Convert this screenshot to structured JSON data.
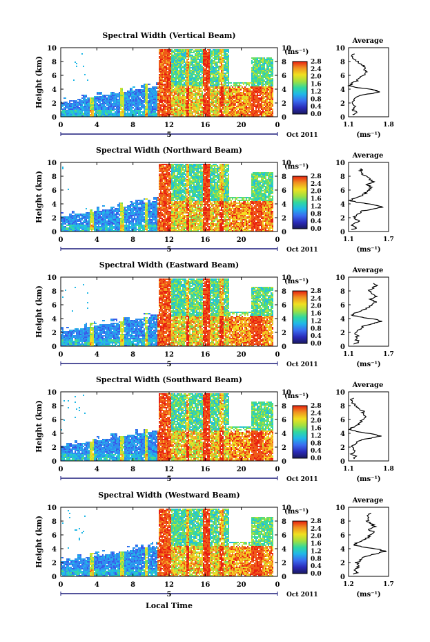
{
  "chart_data": [
    {
      "type": "heatmap",
      "title": "Spectral Width (Vertical Beam)",
      "ylabel": "Height (km)",
      "xlim": [
        0,
        24
      ],
      "ylim": [
        0,
        10
      ],
      "x_ticks": [
        "0",
        "4",
        "8",
        "12",
        "16",
        "20",
        "0"
      ],
      "y_ticks": [
        "0",
        "2",
        "4",
        "6",
        "8",
        "10"
      ],
      "day_label": "5",
      "date_label": "Oct 2011",
      "colorbar": {
        "unit_label": "(ms⁻¹)",
        "ticks": [
          "0.0",
          "0.4",
          "0.8",
          "1.2",
          "1.6",
          "2.0",
          "2.4",
          "2.8"
        ]
      },
      "average": {
        "title": "Average",
        "xlabel": "(ms⁻¹)",
        "xlim": [
          1.1,
          1.8
        ],
        "x_ticks": [
          "1.1",
          "1.8"
        ],
        "y_ticks": [
          "0",
          "2",
          "4",
          "6",
          "8",
          "10"
        ],
        "heights": [
          0.3,
          0.6,
          1.0,
          1.5,
          2.0,
          2.5,
          3.0,
          3.3,
          3.6,
          3.9,
          4.2,
          4.5,
          4.8,
          5.2,
          5.6,
          6.0,
          6.4,
          6.8,
          7.2,
          7.6,
          8.0,
          8.4,
          8.8,
          9.2
        ],
        "values": [
          1.18,
          1.25,
          1.16,
          1.22,
          1.14,
          1.2,
          1.26,
          1.45,
          1.65,
          1.55,
          1.28,
          1.12,
          1.15,
          1.24,
          1.28,
          1.35,
          1.42,
          1.38,
          1.4,
          1.3,
          1.25,
          1.2,
          1.15,
          1.22
        ]
      }
    },
    {
      "type": "heatmap",
      "title": "Spectral Width (Northward Beam)",
      "ylabel": "Height (km)",
      "xlim": [
        0,
        24
      ],
      "ylim": [
        0,
        10
      ],
      "x_ticks": [
        "0",
        "4",
        "8",
        "12",
        "16",
        "20",
        "0"
      ],
      "y_ticks": [
        "0",
        "2",
        "4",
        "6",
        "8",
        "10"
      ],
      "day_label": "5",
      "date_label": "Oct 2011",
      "colorbar": {
        "unit_label": "(ms⁻¹)",
        "ticks": [
          "0.0",
          "0.4",
          "0.8",
          "1.2",
          "1.6",
          "2.0",
          "2.4",
          "2.8"
        ]
      },
      "average": {
        "title": "Average",
        "xlabel": "(ms⁻¹)",
        "xlim": [
          1.1,
          1.7
        ],
        "x_ticks": [
          "1.1",
          "1.7"
        ],
        "y_ticks": [
          "0",
          "2",
          "4",
          "6",
          "8",
          "10"
        ],
        "heights": [
          0.3,
          0.6,
          1.0,
          1.5,
          2.0,
          2.5,
          3.0,
          3.3,
          3.6,
          3.9,
          4.2,
          4.5,
          4.8,
          5.2,
          5.6,
          6.0,
          6.4,
          6.8,
          7.2,
          7.6,
          8.0,
          8.4,
          8.8,
          9.2
        ],
        "values": [
          1.16,
          1.22,
          1.15,
          1.25,
          1.18,
          1.24,
          1.32,
          1.5,
          1.62,
          1.48,
          1.25,
          1.12,
          1.18,
          1.3,
          1.36,
          1.4,
          1.45,
          1.38,
          1.48,
          1.42,
          1.36,
          1.3,
          1.28,
          1.32
        ]
      }
    },
    {
      "type": "heatmap",
      "title": "Spectral Width (Eastward Beam)",
      "ylabel": "Height (km)",
      "xlim": [
        0,
        24
      ],
      "ylim": [
        0,
        10
      ],
      "x_ticks": [
        "0",
        "4",
        "8",
        "12",
        "16",
        "20",
        "0"
      ],
      "y_ticks": [
        "0",
        "2",
        "4",
        "6",
        "8",
        "10"
      ],
      "day_label": "5",
      "date_label": "Oct 2011",
      "colorbar": {
        "unit_label": "(ms⁻¹)",
        "ticks": [
          "0.0",
          "0.4",
          "0.8",
          "1.2",
          "1.6",
          "2.0",
          "2.4",
          "2.8"
        ]
      },
      "average": {
        "title": "Average",
        "xlabel": "(ms⁻¹)",
        "xlim": [
          1.1,
          1.7
        ],
        "x_ticks": [
          "1.1",
          "1.7"
        ],
        "y_ticks": [
          "0",
          "2",
          "4",
          "6",
          "8",
          "10"
        ],
        "heights": [
          0.3,
          0.6,
          1.0,
          1.5,
          2.0,
          2.5,
          3.0,
          3.3,
          3.6,
          3.9,
          4.2,
          4.5,
          4.8,
          5.2,
          5.6,
          6.0,
          6.4,
          6.8,
          7.2,
          7.6,
          8.0,
          8.4,
          8.8,
          9.2
        ],
        "values": [
          1.18,
          1.26,
          1.2,
          1.24,
          1.2,
          1.28,
          1.34,
          1.48,
          1.6,
          1.5,
          1.3,
          1.14,
          1.2,
          1.32,
          1.4,
          1.45,
          1.5,
          1.44,
          1.52,
          1.46,
          1.4,
          1.46,
          1.52,
          1.48
        ]
      }
    },
    {
      "type": "heatmap",
      "title": "Spectral Width (Southward Beam)",
      "ylabel": "Height (km)",
      "xlim": [
        0,
        24
      ],
      "ylim": [
        0,
        10
      ],
      "x_ticks": [
        "0",
        "4",
        "8",
        "12",
        "16",
        "20",
        "0"
      ],
      "y_ticks": [
        "0",
        "2",
        "4",
        "6",
        "8",
        "10"
      ],
      "day_label": "5",
      "date_label": "Oct 2011",
      "colorbar": {
        "unit_label": "(ms⁻¹)",
        "ticks": [
          "0.0",
          "0.4",
          "0.8",
          "1.2",
          "1.6",
          "2.0",
          "2.4",
          "2.8"
        ]
      },
      "average": {
        "title": "Average",
        "xlabel": "(ms⁻¹)",
        "xlim": [
          1.1,
          1.8
        ],
        "x_ticks": [
          "1.1",
          "1.8"
        ],
        "y_ticks": [
          "0",
          "2",
          "4",
          "6",
          "8",
          "10"
        ],
        "heights": [
          0.3,
          0.6,
          1.0,
          1.5,
          2.0,
          2.5,
          3.0,
          3.3,
          3.6,
          3.9,
          4.2,
          4.5,
          4.8,
          5.2,
          5.6,
          6.0,
          6.4,
          6.8,
          7.2,
          7.6,
          8.0,
          8.4,
          8.8,
          9.2
        ],
        "values": [
          1.18,
          1.24,
          1.16,
          1.22,
          1.15,
          1.22,
          1.3,
          1.48,
          1.66,
          1.52,
          1.28,
          1.12,
          1.16,
          1.26,
          1.3,
          1.36,
          1.4,
          1.34,
          1.36,
          1.28,
          1.22,
          1.18,
          1.14,
          1.2
        ]
      }
    },
    {
      "type": "heatmap",
      "title": "Spectral Width (Westward Beam)",
      "ylabel": "Height (km)",
      "xlabel": "Local Time",
      "xlim": [
        0,
        24
      ],
      "ylim": [
        0,
        10
      ],
      "x_ticks": [
        "0",
        "4",
        "8",
        "12",
        "16",
        "20",
        "0"
      ],
      "y_ticks": [
        "0",
        "2",
        "4",
        "6",
        "8",
        "10"
      ],
      "day_label": "5",
      "date_label": "Oct 2011",
      "colorbar": {
        "unit_label": "(ms⁻¹)",
        "ticks": [
          "0.0",
          "0.4",
          "0.8",
          "1.2",
          "1.6",
          "2.0",
          "2.4",
          "2.8"
        ]
      },
      "average": {
        "title": "Average",
        "xlabel": "(ms⁻¹)",
        "xlim": [
          1.2,
          1.7
        ],
        "x_ticks": [
          "1.2",
          "1.7"
        ],
        "y_ticks": [
          "0",
          "2",
          "4",
          "6",
          "8",
          "10"
        ],
        "heights": [
          0.3,
          0.6,
          1.0,
          1.5,
          2.0,
          2.5,
          3.0,
          3.3,
          3.6,
          3.9,
          4.2,
          4.5,
          4.8,
          5.2,
          5.6,
          6.0,
          6.4,
          6.8,
          7.2,
          7.6,
          8.0,
          8.4,
          8.8,
          9.2
        ],
        "values": [
          1.26,
          1.32,
          1.28,
          1.34,
          1.3,
          1.36,
          1.44,
          1.56,
          1.66,
          1.58,
          1.4,
          1.26,
          1.3,
          1.38,
          1.44,
          1.48,
          1.52,
          1.46,
          1.54,
          1.48,
          1.42,
          1.46,
          1.44,
          1.48
        ]
      }
    }
  ]
}
